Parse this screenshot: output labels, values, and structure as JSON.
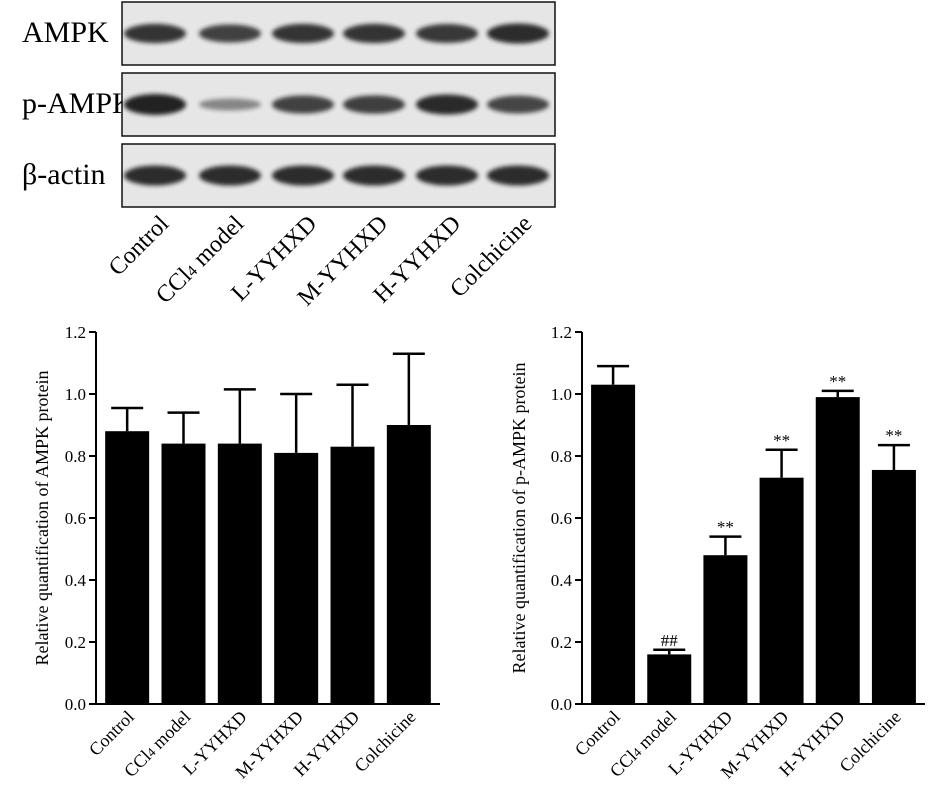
{
  "blot": {
    "rows": [
      {
        "label": "AMPK",
        "intensities": [
          0.8,
          0.72,
          0.8,
          0.8,
          0.78,
          0.85
        ]
      },
      {
        "label": "p-AMPK",
        "intensities": [
          0.92,
          0.28,
          0.72,
          0.74,
          0.86,
          0.7
        ]
      },
      {
        "label": "β-actin",
        "intensities": [
          0.85,
          0.85,
          0.85,
          0.85,
          0.85,
          0.85
        ]
      }
    ],
    "lanes": [
      {
        "main": "Control",
        "sub": ""
      },
      {
        "main": "CCl",
        "sub": "4",
        "rest": " model"
      },
      {
        "main": "L-YYHXD",
        "sub": ""
      },
      {
        "main": "M-YYHXD",
        "sub": ""
      },
      {
        "main": "H-YYHXD",
        "sub": ""
      },
      {
        "main": "Colchicine",
        "sub": ""
      }
    ]
  },
  "chart_data": [
    {
      "type": "bar",
      "categories": [
        "Control",
        "CCl4 model",
        "L-YYHXD",
        "M-YYHXD",
        "H-YYHXD",
        "Colchicine"
      ],
      "values": [
        0.88,
        0.84,
        0.84,
        0.81,
        0.83,
        0.9
      ],
      "errors": [
        0.075,
        0.1,
        0.175,
        0.19,
        0.2,
        0.23
      ],
      "annotations": [
        "",
        "",
        "",
        "",
        "",
        ""
      ],
      "ylabel": "Relative quantification of AMPK protein",
      "ylim": [
        0,
        1.2
      ],
      "yticks": [
        "0.0",
        "0.2",
        "0.4",
        "0.6",
        "0.8",
        "1.0",
        "1.2"
      ],
      "bar_color": "#000000"
    },
    {
      "type": "bar",
      "categories": [
        "Control",
        "CCl4 model",
        "L-YYHXD",
        "M-YYHXD",
        "H-YYHXD",
        "Colchicine"
      ],
      "values": [
        1.03,
        0.16,
        0.48,
        0.73,
        0.99,
        0.755
      ],
      "errors": [
        0.06,
        0.015,
        0.06,
        0.09,
        0.02,
        0.08
      ],
      "annotations": [
        "",
        "##",
        "**",
        "**",
        "**",
        "**"
      ],
      "ylabel": "Relative quantification of p-AMPK protein",
      "ylim": [
        0,
        1.2
      ],
      "yticks": [
        "0.0",
        "0.2",
        "0.4",
        "0.6",
        "0.8",
        "1.0",
        "1.2"
      ],
      "bar_color": "#000000"
    }
  ]
}
